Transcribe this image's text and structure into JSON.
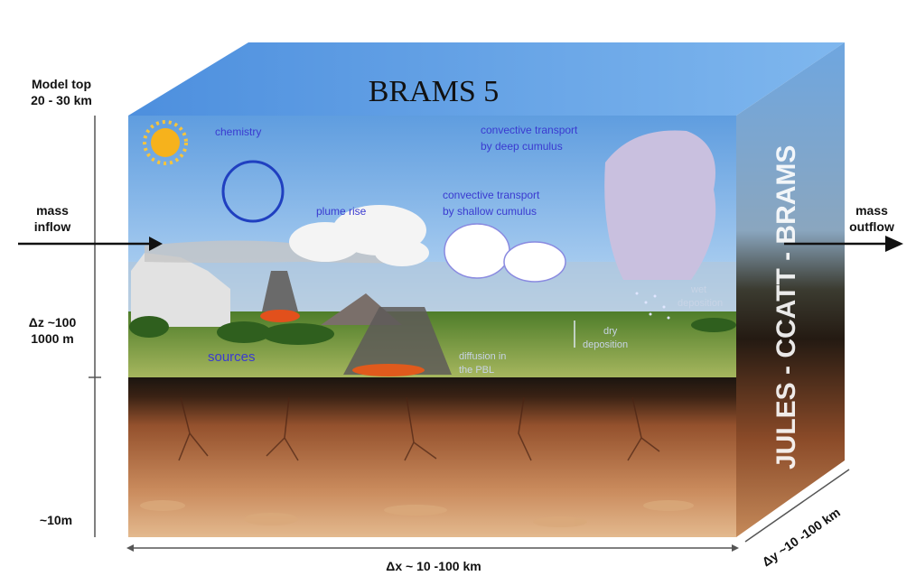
{
  "title": "BRAMS 5",
  "side_label": "JULES - CCATT - BRAMS",
  "left_labels": {
    "model_top": [
      "Model top",
      "20 - 30 km"
    ],
    "dz": [
      "Δz ~100",
      "1000 m"
    ],
    "bottom": "~10m"
  },
  "flows": {
    "inflow": [
      "mass",
      "inflow"
    ],
    "outflow": [
      "mass",
      "outflow"
    ]
  },
  "dx": "Δx ~ 10 -100 km",
  "dy": "Δy ~10 -100 km",
  "processes": {
    "chemistry": "chemistry",
    "deep": [
      "convective transport",
      "by deep cumulus"
    ],
    "shallow": [
      "convective transport",
      "by shallow cumulus"
    ],
    "plume": "plume rise",
    "sources": "sources",
    "diffusion": [
      "diffusion in",
      "the PBL"
    ],
    "dry": [
      "dry",
      "deposition"
    ],
    "wet": [
      "wet",
      "deposition"
    ]
  }
}
